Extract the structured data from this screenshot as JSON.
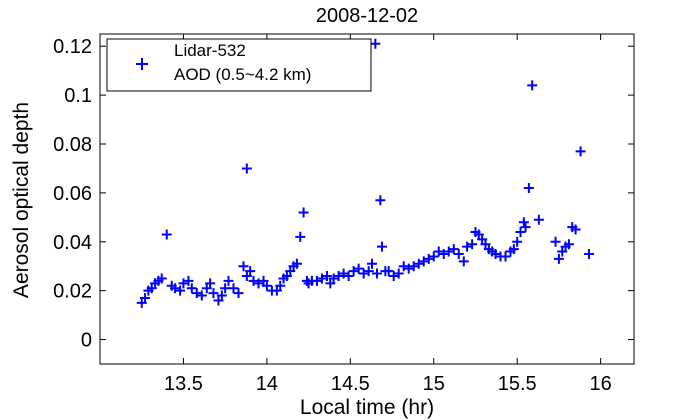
{
  "chart_data": {
    "type": "scatter",
    "title": "2008-12-02",
    "xlabel": "Local time (hr)",
    "ylabel": "Aerosol optical depth",
    "xlim": [
      13.0,
      16.2
    ],
    "ylim": [
      -0.01,
      0.125
    ],
    "xticks": [
      13.5,
      14,
      14.5,
      15,
      15.5,
      16
    ],
    "xtick_labels": [
      "13.5",
      "14",
      "14.5",
      "15",
      "15.5",
      "16"
    ],
    "yticks": [
      0,
      0.02,
      0.04,
      0.06,
      0.08,
      0.1,
      0.12
    ],
    "ytick_labels": [
      "0",
      "0.02",
      "0.04",
      "0.06",
      "0.08",
      "0.1",
      "0.12"
    ],
    "grid": false,
    "legend": {
      "position": "top-left",
      "entries": [
        {
          "name": "Lidar-532",
          "name2": "AOD (0.5~4.2 km)"
        }
      ]
    },
    "marker_color": "#0000ff",
    "series": [
      {
        "name": "Lidar-532 AOD (0.5~4.2 km)",
        "marker": "+",
        "x": [
          13.25,
          13.27,
          13.29,
          13.31,
          13.33,
          13.35,
          13.37,
          13.4,
          13.43,
          13.45,
          13.48,
          13.5,
          13.53,
          13.55,
          13.58,
          13.61,
          13.64,
          13.66,
          13.68,
          13.71,
          13.73,
          13.75,
          13.77,
          13.8,
          13.83,
          13.86,
          13.88,
          13.88,
          13.9,
          13.92,
          13.95,
          13.98,
          14.0,
          14.03,
          14.06,
          14.08,
          14.1,
          14.12,
          14.14,
          14.16,
          14.18,
          14.2,
          14.22,
          14.24,
          14.25,
          14.27,
          14.3,
          14.33,
          14.36,
          14.38,
          14.4,
          14.43,
          14.46,
          14.49,
          14.52,
          14.55,
          14.58,
          14.61,
          14.63,
          14.65,
          14.66,
          14.68,
          14.69,
          14.71,
          14.73,
          14.76,
          14.79,
          14.82,
          14.85,
          14.88,
          14.91,
          14.94,
          14.97,
          15.0,
          15.03,
          15.06,
          15.09,
          15.12,
          15.15,
          15.18,
          15.2,
          15.23,
          15.25,
          15.27,
          15.29,
          15.31,
          15.33,
          15.35,
          15.37,
          15.4,
          15.43,
          15.46,
          15.48,
          15.5,
          15.52,
          15.54,
          15.55,
          15.57,
          15.59,
          15.63,
          15.73,
          15.75,
          15.77,
          15.79,
          15.81,
          15.83,
          15.85,
          15.88,
          15.93
        ],
        "y": [
          0.015,
          0.017,
          0.02,
          0.021,
          0.023,
          0.024,
          0.025,
          0.043,
          0.022,
          0.021,
          0.02,
          0.023,
          0.024,
          0.021,
          0.019,
          0.018,
          0.021,
          0.023,
          0.019,
          0.016,
          0.018,
          0.021,
          0.024,
          0.021,
          0.019,
          0.03,
          0.07,
          0.026,
          0.028,
          0.024,
          0.023,
          0.024,
          0.022,
          0.02,
          0.02,
          0.022,
          0.025,
          0.026,
          0.028,
          0.03,
          0.031,
          0.042,
          0.052,
          0.024,
          0.023,
          0.024,
          0.024,
          0.025,
          0.026,
          0.023,
          0.025,
          0.026,
          0.027,
          0.026,
          0.028,
          0.029,
          0.027,
          0.028,
          0.031,
          0.121,
          0.027,
          0.057,
          0.038,
          0.028,
          0.028,
          0.026,
          0.027,
          0.03,
          0.029,
          0.03,
          0.031,
          0.032,
          0.033,
          0.034,
          0.036,
          0.035,
          0.036,
          0.037,
          0.035,
          0.032,
          0.038,
          0.039,
          0.044,
          0.043,
          0.041,
          0.039,
          0.037,
          0.036,
          0.035,
          0.034,
          0.034,
          0.036,
          0.037,
          0.04,
          0.044,
          0.048,
          0.046,
          0.062,
          0.104,
          0.049,
          0.04,
          0.033,
          0.036,
          0.038,
          0.039,
          0.046,
          0.045,
          0.077,
          0.035
        ]
      }
    ]
  }
}
